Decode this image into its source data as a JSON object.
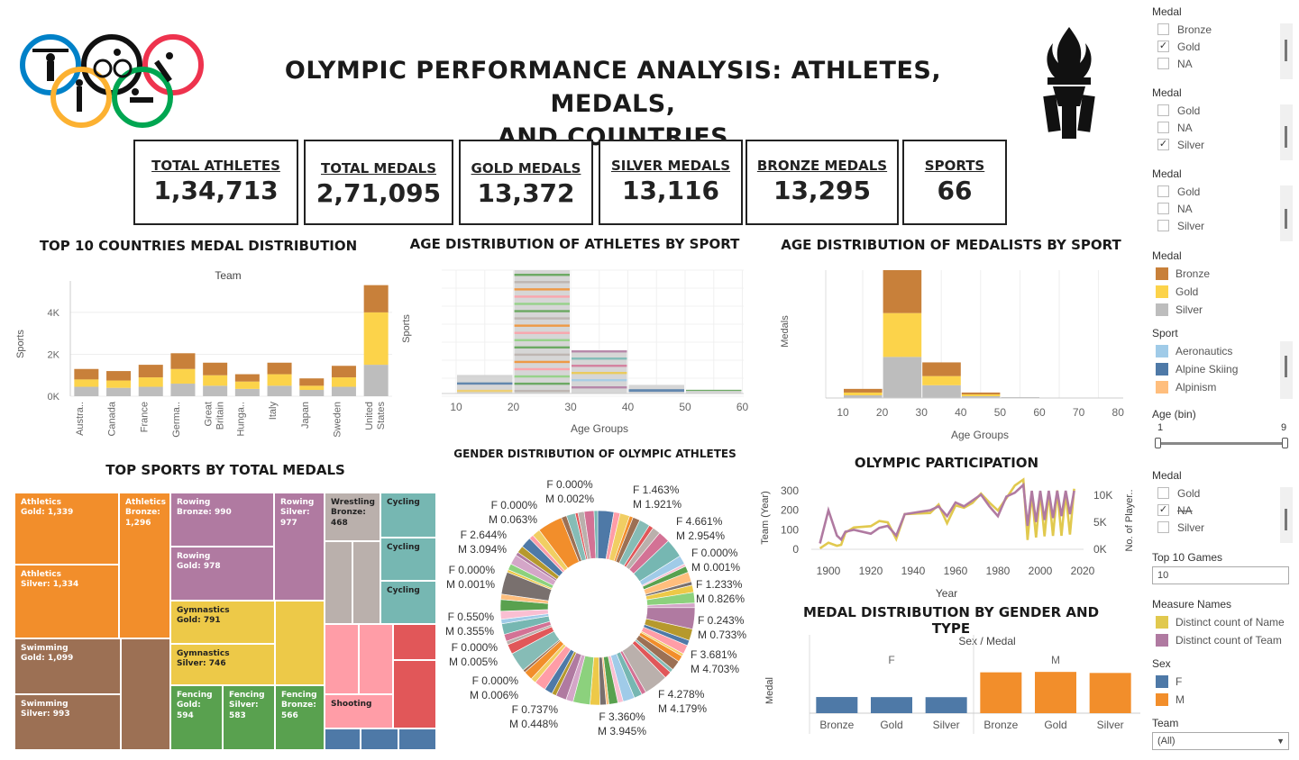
{
  "header": {
    "title_line1": "OLYMPIC PERFORMANCE ANALYSIS: ATHLETES, MEDALS,",
    "title_line2": "AND COUNTRIES"
  },
  "kpis": [
    {
      "label": "TOTAL ATHLETES",
      "value": "1,34,713"
    },
    {
      "label": "TOTAL MEDALS",
      "value": "2,71,095"
    },
    {
      "label": "GOLD MEDALS",
      "value": "13,372"
    },
    {
      "label": "SILVER MEDALS",
      "value": "13,116"
    },
    {
      "label": "BRONZE MEDALS",
      "value": "13,295"
    },
    {
      "label": "SPORTS",
      "value": "66"
    }
  ],
  "titles": {
    "top10": "TOP 10 COUNTRIES MEDAL DISTRIBUTION",
    "age_athletes": "AGE DISTRIBUTION OF ATHLETES BY SPORT",
    "age_medalists": "AGE DISTRIBUTION OF MEDALISTS BY SPORT",
    "top_sports": "TOP SPORTS BY TOTAL MEDALS",
    "gender": "GENDER DISTRIBUTION OF OLYMPIC ATHLETES",
    "participation": "OLYMPIC PARTICIPATION",
    "medal_gender": "MEDAL DISTRIBUTION BY GENDER AND TYPE"
  },
  "colors": {
    "bronze": "#c8803a",
    "gold": "#fcd34a",
    "silver": "#bdbdbd",
    "female": "#4e79a7",
    "male": "#f28e2b",
    "name_line": "#e1c94e",
    "team_line": "#b07aa1"
  },
  "chart_data": [
    {
      "type": "bar",
      "stacked": true,
      "title": "TOP 10 COUNTRIES MEDAL DISTRIBUTION",
      "header": "Team",
      "ylabel": "Sports",
      "ylim": [
        0,
        5500
      ],
      "yticks": [
        "0K",
        "2K",
        "4K"
      ],
      "categories": [
        "Austra..",
        "Canada",
        "France",
        "Germa..",
        "Great Britain",
        "Hunga..",
        "Italy",
        "Japan",
        "Sweden",
        "United States"
      ],
      "series": [
        {
          "name": "Silver",
          "values": [
            450,
            400,
            450,
            600,
            500,
            350,
            500,
            300,
            450,
            1500
          ]
        },
        {
          "name": "Gold",
          "values": [
            350,
            350,
            450,
            700,
            500,
            350,
            550,
            200,
            450,
            2500
          ]
        },
        {
          "name": "Bronze",
          "values": [
            500,
            450,
            600,
            750,
            600,
            350,
            550,
            350,
            550,
            1300
          ]
        }
      ]
    },
    {
      "type": "bar",
      "stacked": true,
      "title": "AGE DISTRIBUTION OF ATHLETES BY SPORT",
      "ylabel": "Sports",
      "xlabel": "Age Groups",
      "xticks": [
        10,
        20,
        30,
        40,
        50,
        60
      ],
      "bins": [
        {
          "from": 10,
          "to": 20,
          "value": 15
        },
        {
          "from": 20,
          "to": 30,
          "value": 100
        },
        {
          "from": 30,
          "to": 40,
          "value": 35
        },
        {
          "from": 40,
          "to": 50,
          "value": 7
        },
        {
          "from": 50,
          "to": 60,
          "value": 3
        }
      ]
    },
    {
      "type": "bar",
      "stacked": true,
      "title": "AGE DISTRIBUTION OF MEDALISTS BY SPORT",
      "ylabel": "Medals",
      "xlabel": "Age Groups",
      "xticks": [
        10,
        20,
        30,
        40,
        50,
        60,
        70,
        80
      ],
      "bins": [
        {
          "from": 10,
          "to": 20,
          "bronze": 4,
          "gold": 3,
          "silver": 3
        },
        {
          "from": 20,
          "to": 30,
          "bronze": 47,
          "gold": 48,
          "silver": 45
        },
        {
          "from": 30,
          "to": 40,
          "bronze": 15,
          "gold": 10,
          "silver": 14
        },
        {
          "from": 40,
          "to": 50,
          "bronze": 2,
          "gold": 2,
          "silver": 2
        },
        {
          "from": 50,
          "to": 60,
          "bronze": 0,
          "gold": 0,
          "silver": 1
        }
      ]
    },
    {
      "type": "heatmap",
      "title": "TOP SPORTS BY TOTAL MEDALS",
      "tiles": [
        {
          "sport": "Athletics",
          "medal": "Gold",
          "value": "1,339",
          "label": "Athletics\nGold: 1,339"
        },
        {
          "sport": "Athletics",
          "medal": "Bronze",
          "value": "1,296",
          "label": "Athletics\nBronze:\n1,296"
        },
        {
          "sport": "Athletics",
          "medal": "Silver",
          "value": "1,334",
          "label": "Athletics\nSilver: 1,334"
        },
        {
          "sport": "Swimming",
          "medal": "Gold",
          "value": "1,099",
          "label": "Swimming\nGold: 1,099"
        },
        {
          "sport": "Swimming",
          "medal": "Silver",
          "value": "993",
          "label": "Swimming\nSilver: 993"
        },
        {
          "sport": "Swimming",
          "medal": "Bronze",
          "label": ""
        },
        {
          "sport": "Rowing",
          "medal": "Bronze",
          "value": "990",
          "label": "Rowing\nBronze: 990"
        },
        {
          "sport": "Rowing",
          "medal": "Silver",
          "value": "977",
          "label": "Rowing\nSilver:\n977"
        },
        {
          "sport": "Rowing",
          "medal": "Gold",
          "value": "978",
          "label": "Rowing\nGold: 978"
        },
        {
          "sport": "Gymnastics",
          "medal": "Gold",
          "value": "791",
          "label": "Gymnastics\nGold: 791"
        },
        {
          "sport": "Gymnastics",
          "medal": "Silver",
          "value": "746",
          "label": "Gymnastics\nSilver: 746"
        },
        {
          "sport": "Gymnastics",
          "medal": "Bronze",
          "label": ""
        },
        {
          "sport": "Fencing",
          "medal": "Gold",
          "value": "594",
          "label": "Fencing\nGold:\n594"
        },
        {
          "sport": "Fencing",
          "medal": "Silver",
          "value": "583",
          "label": "Fencing\nSilver:\n583"
        },
        {
          "sport": "Fencing",
          "medal": "Bronze",
          "value": "566",
          "label": "Fencing\nBronze:\n566"
        },
        {
          "sport": "Wrestling",
          "medal": "Bronze",
          "value": "468",
          "label": "Wrestling\nBronze:\n468"
        },
        {
          "sport": "Cycling",
          "label": "Cycling"
        },
        {
          "sport": "Cycling",
          "label": "Cycling"
        },
        {
          "sport": "Cycling",
          "label": "Cycling"
        },
        {
          "sport": "Shooting",
          "label": "Shooting"
        }
      ]
    },
    {
      "type": "pie",
      "title": "GENDER DISTRIBUTION OF OLYMPIC ATHLETES",
      "labels": [
        {
          "f": "F 0.000%",
          "m": "M 0.002%"
        },
        {
          "f": "F 1.463%",
          "m": "M 1.921%"
        },
        {
          "f": "F 4.661%",
          "m": "M 2.954%"
        },
        {
          "f": "F 0.000%",
          "m": "M 0.001%"
        },
        {
          "f": "F 1.233%",
          "m": "M 0.826%"
        },
        {
          "f": "F 0.243%",
          "m": "M 0.733%"
        },
        {
          "f": "F 3.681%",
          "m": "M 4.703%"
        },
        {
          "f": "F 4.278%",
          "m": "M 4.179%"
        },
        {
          "f": "F 3.360%",
          "m": "M 3.945%"
        },
        {
          "f": "F 0.737%",
          "m": "M 0.448%"
        },
        {
          "f": "F 0.000%",
          "m": "M 0.006%"
        },
        {
          "f": "F 0.000%",
          "m": "M 0.005%"
        },
        {
          "f": "F 0.550%",
          "m": "M 0.355%"
        },
        {
          "f": "F 0.000%",
          "m": "M 0.001%"
        },
        {
          "f": "F 2.644%",
          "m": "M 3.094%"
        },
        {
          "f": "F 0.000%",
          "m": "M 0.063%"
        }
      ]
    },
    {
      "type": "line",
      "title": "OLYMPIC PARTICIPATION",
      "xlabel": "Year",
      "ylabel_left": "Team (Year)",
      "ylabel_right": "No. of Player..",
      "xticks": [
        1900,
        1920,
        1940,
        1960,
        1980,
        2000,
        2020
      ],
      "yticks_left": [
        0,
        100,
        200,
        300
      ],
      "yticks_right": [
        "0K",
        "5K",
        "10K"
      ],
      "series": [
        {
          "name": "Distinct count of Name",
          "axis": "right",
          "x": [
            1896,
            1900,
            1904,
            1906,
            1908,
            1912,
            1920,
            1924,
            1928,
            1932,
            1936,
            1948,
            1952,
            1956,
            1960,
            1964,
            1968,
            1972,
            1976,
            1980,
            1984,
            1988,
            1992,
            1994,
            1996,
            1998,
            2000,
            2002,
            2004,
            2006,
            2008,
            2010,
            2012,
            2014,
            2016
          ],
          "y": [
            176,
            1220,
            650,
            840,
            3070,
            4040,
            4290,
            5230,
            4990,
            1920,
            6510,
            6710,
            8270,
            4840,
            8120,
            7700,
            8580,
            10300,
            8640,
            7190,
            9450,
            11800,
            12900,
            1740,
            10300,
            2180,
            10600,
            2400,
            10500,
            2490,
            10900,
            2500,
            10500,
            2740,
            11200
          ]
        },
        {
          "name": "Distinct count of Team",
          "axis": "left",
          "x": [
            1896,
            1900,
            1904,
            1906,
            1908,
            1912,
            1920,
            1924,
            1928,
            1932,
            1936,
            1948,
            1952,
            1956,
            1960,
            1964,
            1968,
            1972,
            1976,
            1980,
            1984,
            1988,
            1992,
            1994,
            1996,
            1998,
            2000,
            2002,
            2004,
            2006,
            2008,
            2010,
            2012,
            2014,
            2016
          ],
          "y": [
            30,
            200,
            70,
            50,
            90,
            100,
            80,
            110,
            120,
            70,
            180,
            200,
            220,
            170,
            240,
            220,
            250,
            280,
            220,
            170,
            270,
            290,
            330,
            120,
            300,
            140,
            300,
            150,
            300,
            160,
            300,
            170,
            300,
            180,
            300
          ]
        }
      ]
    },
    {
      "type": "bar",
      "title": "MEDAL DISTRIBUTION BY GENDER AND TYPE",
      "header": "Sex / Medal",
      "ylabel": "Medal",
      "groups": [
        "F",
        "M"
      ],
      "categories": [
        "Bronze",
        "Gold",
        "Silver"
      ],
      "series": [
        {
          "name": "F",
          "values": [
            3770,
            3747,
            3735
          ]
        },
        {
          "name": "M",
          "values": [
            9525,
            9625,
            9381
          ]
        }
      ]
    }
  ],
  "sidebar": {
    "filter1": {
      "title": "Medal",
      "items": [
        {
          "label": "Bronze",
          "checked": false
        },
        {
          "label": "Gold",
          "checked": true
        },
        {
          "label": "NA",
          "checked": false
        }
      ]
    },
    "filter2": {
      "title": "Medal",
      "items": [
        {
          "label": "Gold",
          "checked": false
        },
        {
          "label": "NA",
          "checked": false
        },
        {
          "label": "Silver",
          "checked": true
        }
      ]
    },
    "filter3": {
      "title": "Medal",
      "items": [
        {
          "label": "Gold",
          "checked": false
        },
        {
          "label": "NA",
          "checked": false
        },
        {
          "label": "Silver",
          "checked": false
        }
      ]
    },
    "medal_legend": {
      "title": "Medal",
      "items": [
        {
          "label": "Bronze",
          "color": "#c8803a"
        },
        {
          "label": "Gold",
          "color": "#fcd34a"
        },
        {
          "label": "Silver",
          "color": "#bdbdbd"
        }
      ]
    },
    "sport_legend": {
      "title": "Sport",
      "items": [
        {
          "label": "Aeronautics",
          "color": "#a0cbe8"
        },
        {
          "label": "Alpine Skiing",
          "color": "#4e79a7"
        },
        {
          "label": "Alpinism",
          "color": "#ffbe7d"
        }
      ]
    },
    "age_bin": {
      "title": "Age (bin)",
      "min": "1",
      "max": "9"
    },
    "filter4": {
      "title": "Medal",
      "items": [
        {
          "label": "Gold",
          "checked": false
        },
        {
          "label": "NA",
          "checked": true
        },
        {
          "label": "Silver",
          "checked": false
        }
      ]
    },
    "top_games": {
      "title": "Top 10 Games",
      "value": "10"
    },
    "measure_legend": {
      "title": "Measure Names",
      "items": [
        {
          "label": "Distinct count of Name",
          "color": "#e1c94e"
        },
        {
          "label": "Distinct count of Team",
          "color": "#b07aa1"
        }
      ]
    },
    "sex_legend": {
      "title": "Sex",
      "items": [
        {
          "label": "F",
          "color": "#4e79a7"
        },
        {
          "label": "M",
          "color": "#f28e2b"
        }
      ]
    },
    "team": {
      "title": "Team",
      "value": "(All)"
    }
  }
}
